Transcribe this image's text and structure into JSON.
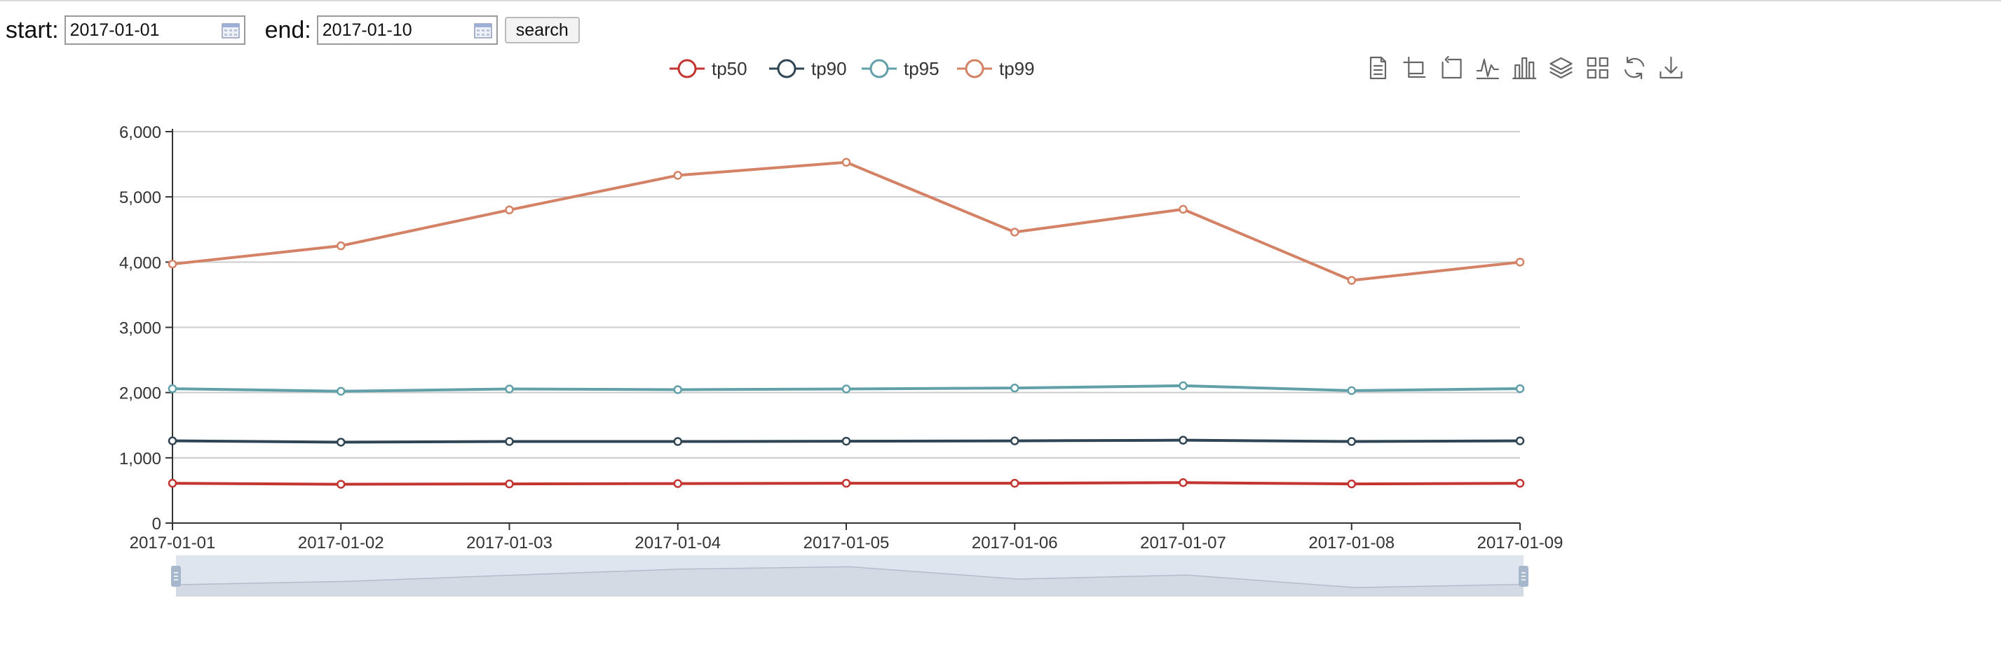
{
  "controls": {
    "start_label": "start:",
    "start_value": "2017-01-01",
    "end_label": "end:",
    "end_value": "2017-01-10",
    "search_label": "search"
  },
  "toolbar": {
    "icons": [
      "data-view-icon",
      "zoom-icon",
      "zoom-reset-icon",
      "line-chart-icon",
      "bar-chart-icon",
      "stack-icon",
      "tiled-icon",
      "restore-icon",
      "save-image-icon"
    ]
  },
  "chart_data": {
    "type": "line",
    "categories": [
      "2017-01-01",
      "2017-01-02",
      "2017-01-03",
      "2017-01-04",
      "2017-01-05",
      "2017-01-06",
      "2017-01-07",
      "2017-01-08",
      "2017-01-09"
    ],
    "series": [
      {
        "name": "tp50",
        "color": "#c23531",
        "values": [
          610,
          595,
          600,
          605,
          610,
          610,
          620,
          600,
          610
        ]
      },
      {
        "name": "tp90",
        "color": "#2f4554",
        "values": [
          1260,
          1240,
          1250,
          1250,
          1255,
          1260,
          1270,
          1250,
          1260
        ]
      },
      {
        "name": "tp95",
        "color": "#61a0a8",
        "values": [
          2060,
          2020,
          2055,
          2045,
          2055,
          2070,
          2105,
          2030,
          2060
        ]
      },
      {
        "name": "tp99",
        "color": "#d48265",
        "values": [
          3970,
          4250,
          4800,
          5330,
          5530,
          4460,
          4810,
          3720,
          4000
        ]
      }
    ],
    "yticks": [
      "0",
      "1,000",
      "2,000",
      "3,000",
      "4,000",
      "5,000",
      "6,000"
    ],
    "ylim": [
      0,
      6000
    ],
    "grid": true,
    "legend": "top-center",
    "datazoom": {
      "start": 0,
      "end": 100,
      "fill": "#dfe5ee",
      "handle": "#a7b7cc"
    }
  }
}
